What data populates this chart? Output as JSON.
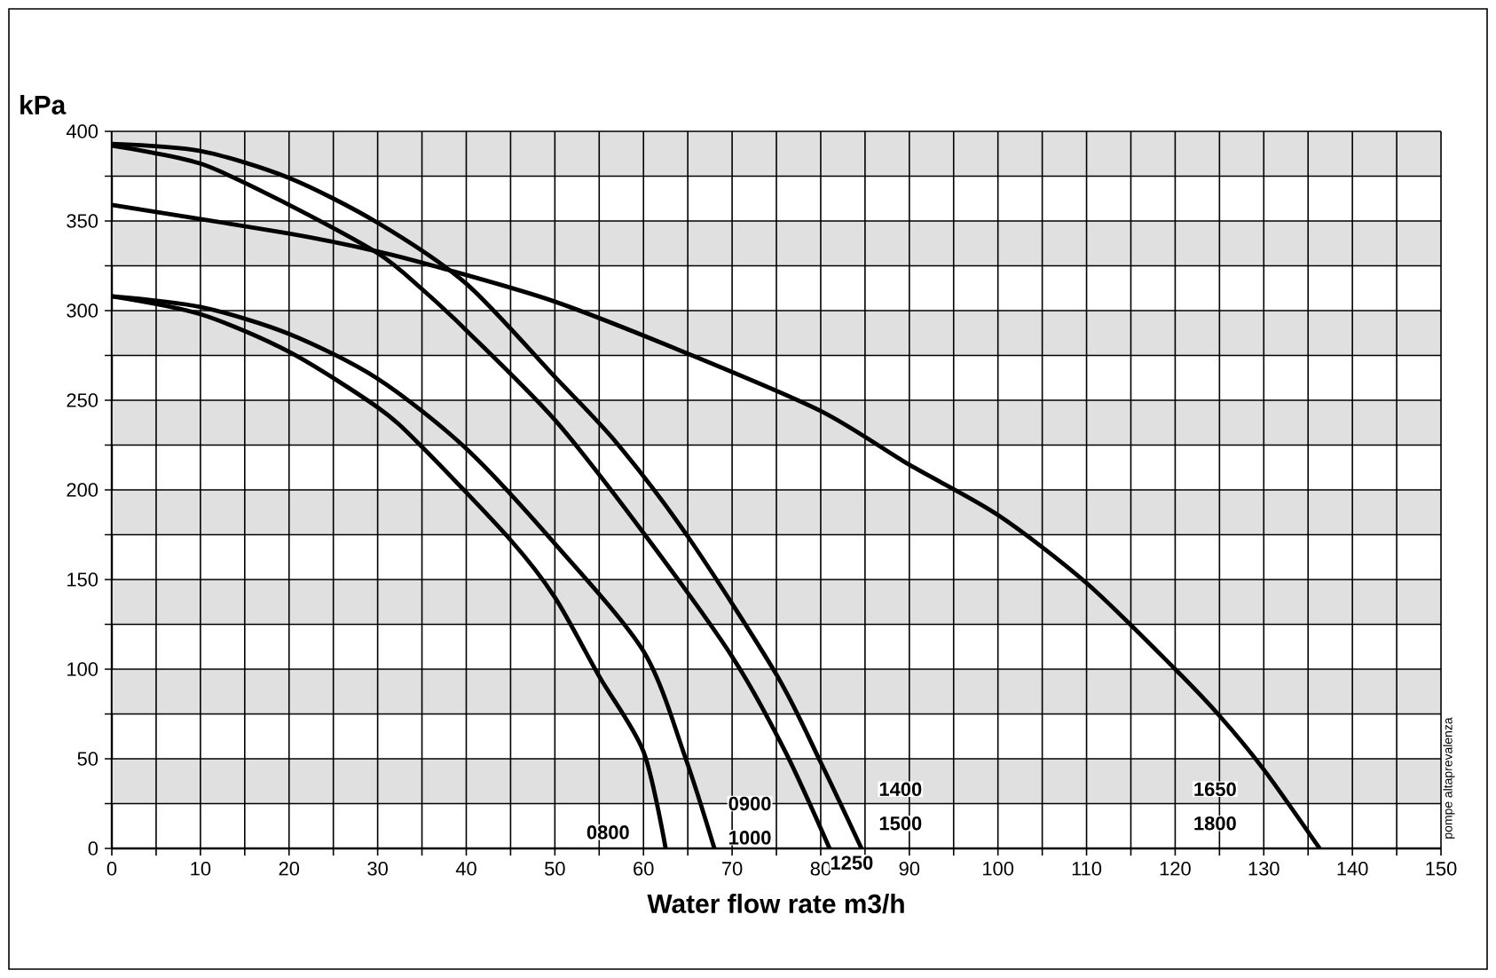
{
  "chart_data": {
    "type": "line",
    "xlabel": "Water flow rate m3/h",
    "ylabel": "kPa",
    "xlim": [
      0,
      150
    ],
    "ylim": [
      0,
      400
    ],
    "xticks": [
      0,
      {
        "value": 5,
        "label": null
      },
      10,
      {
        "value": 15,
        "label": null
      },
      20,
      {
        "value": 25,
        "label": null
      },
      30,
      {
        "value": 35,
        "label": null
      },
      40,
      {
        "value": 45,
        "label": null
      },
      50,
      {
        "value": 55,
        "label": null
      },
      60,
      {
        "value": 65,
        "label": null
      },
      70,
      {
        "value": 75,
        "label": null
      },
      80,
      {
        "value": 85,
        "label": null
      },
      90,
      {
        "value": 95,
        "label": null
      },
      100,
      {
        "value": 105,
        "label": null
      },
      110,
      {
        "value": 115,
        "label": null
      },
      120,
      {
        "value": 125,
        "label": null
      },
      130,
      {
        "value": 135,
        "label": null
      },
      140,
      {
        "value": 145,
        "label": null
      },
      150
    ],
    "yticks": [
      0,
      {
        "value": 25,
        "label": null
      },
      50,
      {
        "value": 75,
        "label": null
      },
      100,
      {
        "value": 125,
        "label": null
      },
      150,
      {
        "value": 175,
        "label": null
      },
      200,
      {
        "value": 225,
        "label": null
      },
      250,
      {
        "value": 275,
        "label": null
      },
      300,
      {
        "value": 325,
        "label": null
      },
      350,
      {
        "value": 375,
        "label": null
      },
      400
    ],
    "grid": true,
    "bands": [
      {
        "axis": "y",
        "from": 25,
        "to": 50,
        "color": "#e0e0e0"
      },
      {
        "axis": "y",
        "from": 75,
        "to": 100,
        "color": "#e0e0e0"
      },
      {
        "axis": "y",
        "from": 125,
        "to": 150,
        "color": "#e0e0e0"
      },
      {
        "axis": "y",
        "from": 175,
        "to": 200,
        "color": "#e0e0e0"
      },
      {
        "axis": "y",
        "from": 225,
        "to": 250,
        "color": "#e0e0e0"
      },
      {
        "axis": "y",
        "from": 275,
        "to": 300,
        "color": "#e0e0e0"
      },
      {
        "axis": "y",
        "from": 325,
        "to": 350,
        "color": "#e0e0e0"
      },
      {
        "axis": "y",
        "from": 375,
        "to": 400,
        "color": "#e0e0e0"
      }
    ],
    "series": [
      {
        "color": "#000000",
        "x": [
          0,
          10,
          20,
          30,
          35,
          45,
          50,
          55,
          60,
          62.5
        ],
        "values": [
          308,
          298,
          277,
          246,
          224,
          172,
          140,
          96,
          54,
          0
        ]
      },
      {
        "color": "#000000",
        "x": [
          0,
          10,
          20,
          30,
          40,
          50,
          60,
          64.7,
          68
        ],
        "values": [
          308,
          302,
          287,
          262,
          223,
          170,
          110,
          51,
          0
        ]
      },
      {
        "color": "#000000",
        "x": [
          0,
          10,
          20,
          30,
          35,
          40,
          50,
          60,
          70,
          76,
          81
        ],
        "values": [
          392,
          382,
          359,
          332,
          312,
          289,
          239,
          176,
          107,
          54,
          0
        ]
      },
      {
        "color": "#000000",
        "x": [
          0,
          10,
          20,
          30,
          40,
          50,
          57,
          65,
          75,
          80,
          84.6
        ],
        "values": [
          393,
          389,
          374,
          349,
          315,
          263,
          226,
          174,
          97,
          48,
          0
        ]
      },
      {
        "color": "#000000",
        "x": [
          0,
          20,
          30,
          37,
          50,
          65,
          80,
          90,
          100,
          110,
          120,
          125,
          130,
          136.3
        ],
        "values": [
          359,
          343,
          333,
          324,
          305,
          276,
          244,
          214,
          186,
          148,
          100,
          74,
          44,
          0
        ]
      }
    ],
    "annotations": [
      "0800",
      "0900",
      "1000",
      "1250",
      "1400",
      "1500",
      "1650",
      "1800",
      "pompe altaprevalenza"
    ]
  }
}
